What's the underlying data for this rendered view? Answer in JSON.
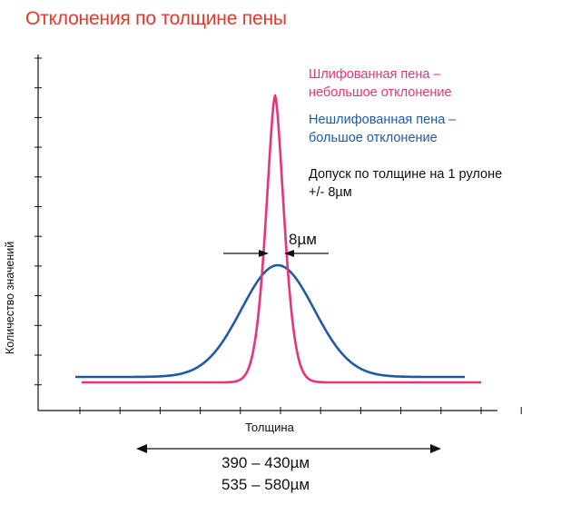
{
  "chart_data": {
    "type": "line",
    "title": "Отклонения по толщине пены",
    "xlabel": "Толщина",
    "ylabel": "Количество значений",
    "grid": false,
    "legend_placement": "top-right",
    "series": [
      {
        "name": "Шлифованная пена – небольшое отклонение",
        "color": "#e8337a",
        "shape": "narrow-peak"
      },
      {
        "name": "Нешлифованная пена – большое отклонение",
        "color": "#1f5aa6",
        "shape": "wide-bell"
      }
    ],
    "legend": {
      "pink_line1": "Шлифованная пена –",
      "pink_line2": "небольшое отклонение",
      "blue_line1": "Нешлифованная пена –",
      "blue_line2": "большое отклонение"
    },
    "tolerance_note_line1": "Допуск по толщине на 1 рулоне",
    "tolerance_note_line2": "+/- 8µм",
    "width_marker": "8µм",
    "ranges": [
      "390 – 430µм",
      "535 – 580µм"
    ]
  }
}
